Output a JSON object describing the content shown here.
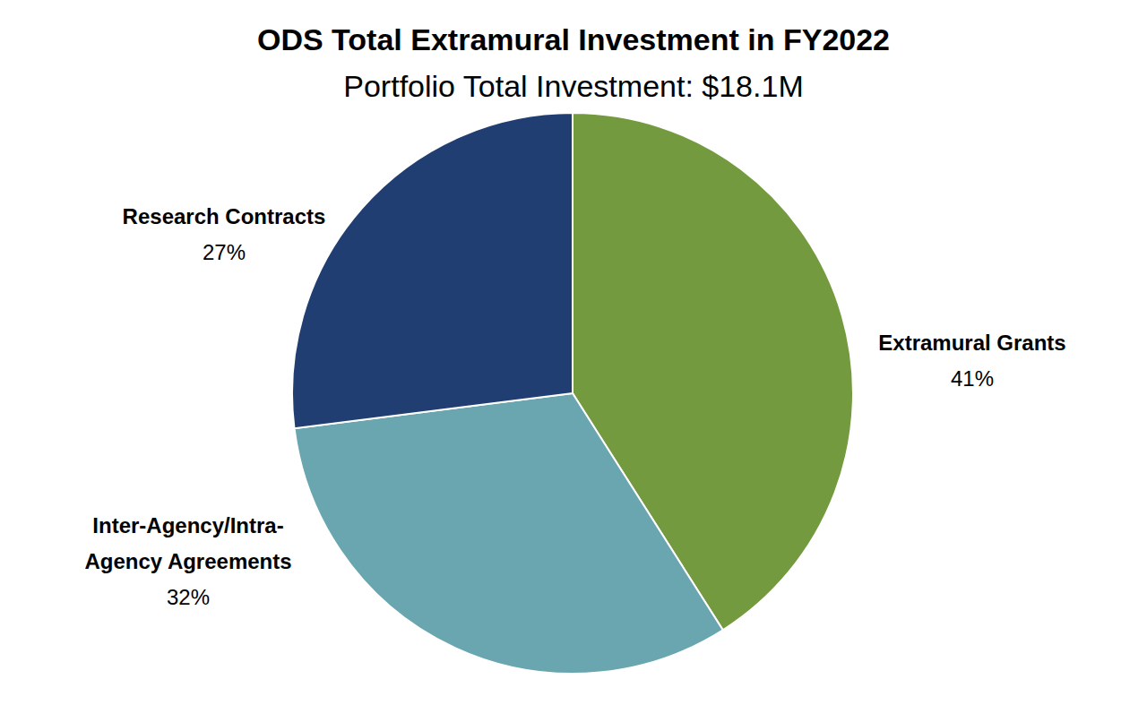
{
  "chart_data": {
    "type": "pie",
    "title": "ODS Total Extramural Investment in FY2022",
    "subtitle": "Portfolio Total Investment: $18.1M",
    "categories": [
      "Extramural Grants",
      "Inter-Agency/Intra-Agency Agreements",
      "Research Contracts"
    ],
    "values": [
      41,
      32,
      27
    ],
    "value_labels": [
      "41%",
      "32%",
      "27%"
    ],
    "colors": [
      "#739a3f",
      "#6aa6b0",
      "#213e72"
    ],
    "data_labels": true
  }
}
